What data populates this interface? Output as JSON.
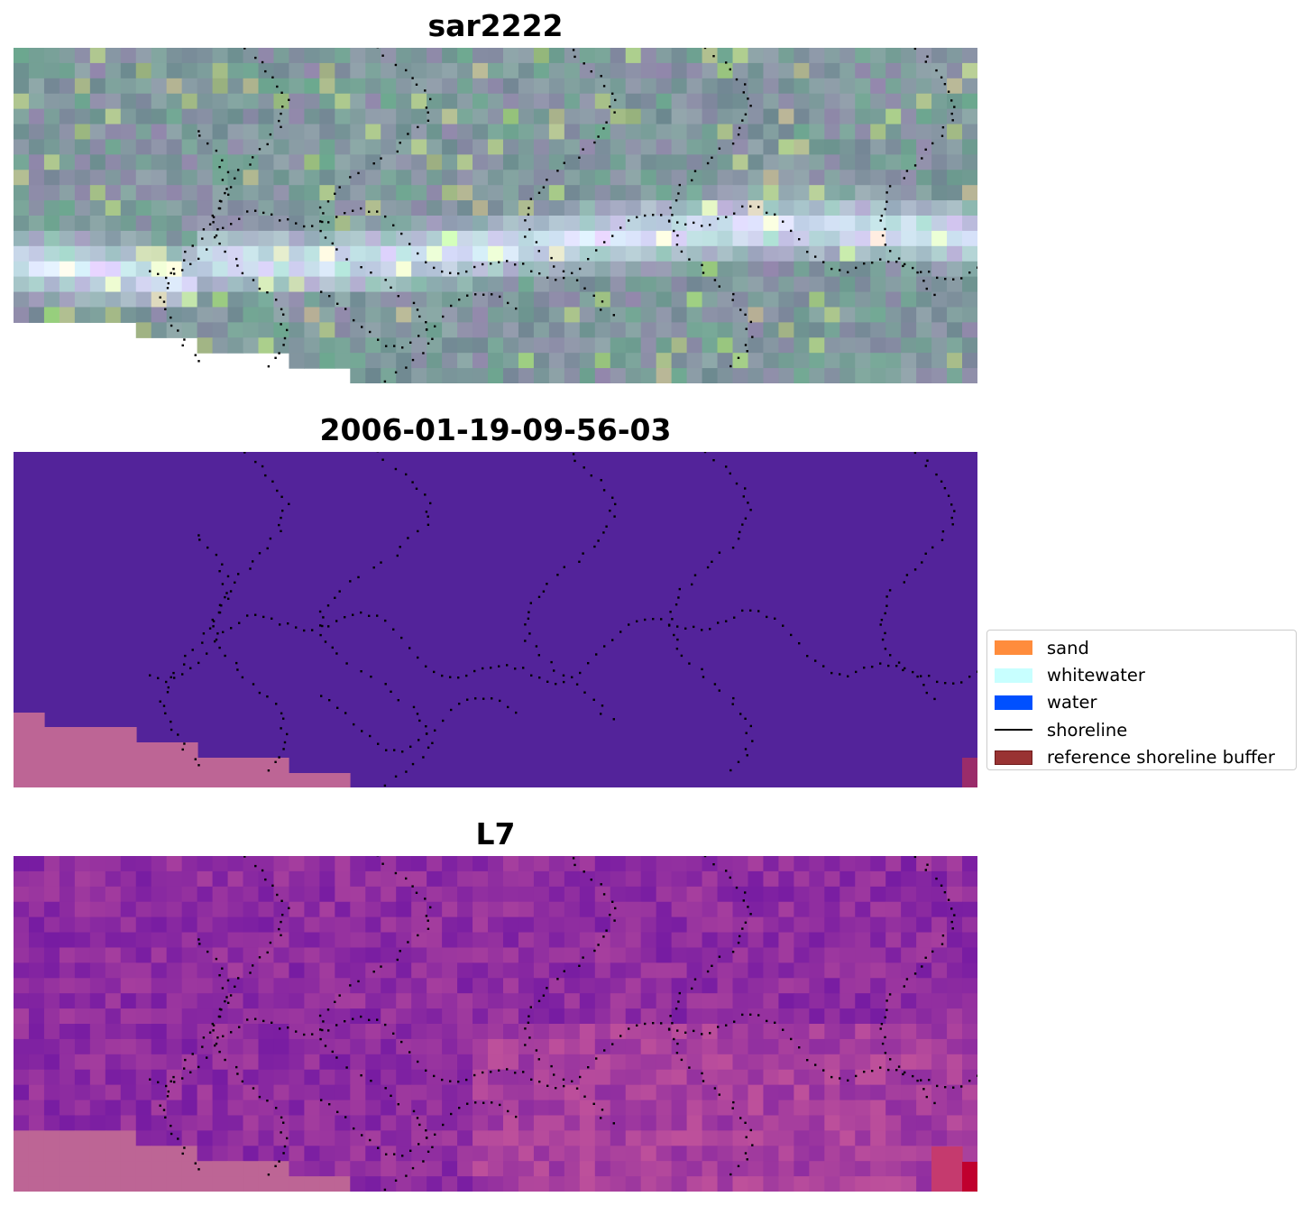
{
  "panels": [
    {
      "title": "sar2222",
      "kind": "sar"
    },
    {
      "title": "2006-01-19-09-56-03",
      "kind": "classification"
    },
    {
      "title": "L7",
      "kind": "mndwi"
    }
  ],
  "legend": {
    "items": [
      {
        "label": "sand",
        "color": "#ff8c3c",
        "shape": "patch"
      },
      {
        "label": "whitewater",
        "color": "#c8ffff",
        "shape": "patch"
      },
      {
        "label": "water",
        "color": "#0050ff",
        "shape": "patch"
      },
      {
        "label": "shoreline",
        "color": "#000000",
        "shape": "line"
      },
      {
        "label": "reference shoreline buffer",
        "color": "#993333",
        "shape": "patch",
        "edge": "#6e1a1a"
      }
    ]
  },
  "colors": {
    "nodata_mask": "#bd6595",
    "classification_background": "#53239a",
    "buffer_red": "#c0002e",
    "shoreline_points": "#000000"
  }
}
